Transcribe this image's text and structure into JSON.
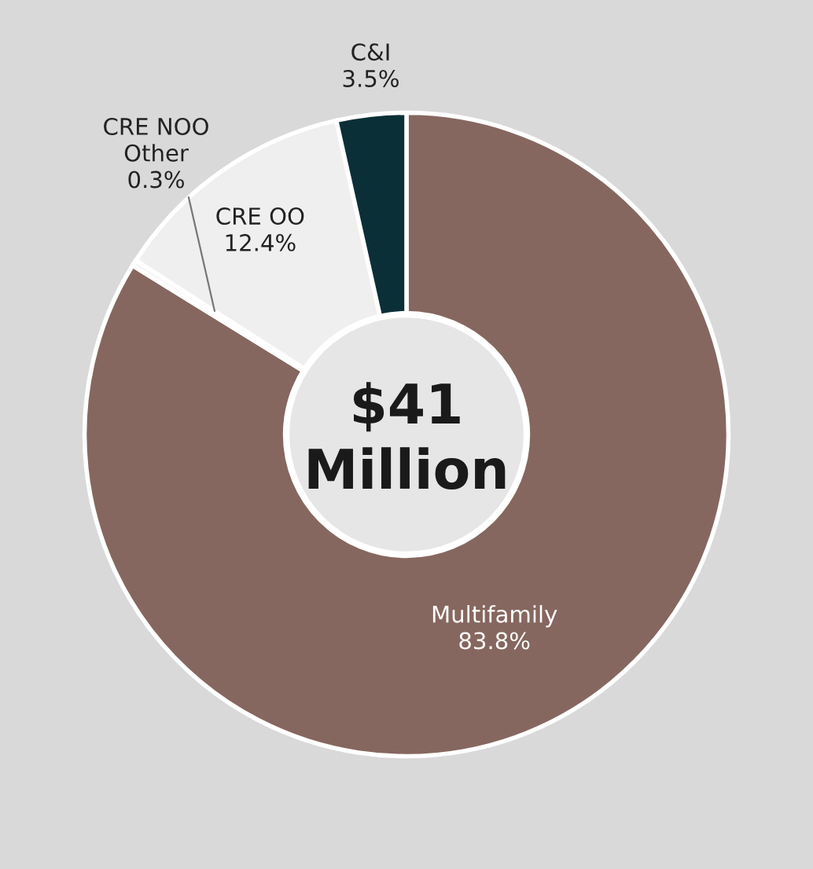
{
  "chart_data": {
    "type": "donut",
    "categories": [
      "Multifamily",
      "CRE NOO\nOther",
      "CRE OO",
      "C&I"
    ],
    "values": [
      83.8,
      0.3,
      12.4,
      3.5
    ],
    "colors": [
      "#86675f",
      "#f4f4f4",
      "#efefef",
      "#0b2f36"
    ],
    "value_labels": [
      "83.8%",
      "0.3%",
      "12.4%",
      "3.5%"
    ],
    "annotations": [
      "$41\nMillion"
    ]
  }
}
